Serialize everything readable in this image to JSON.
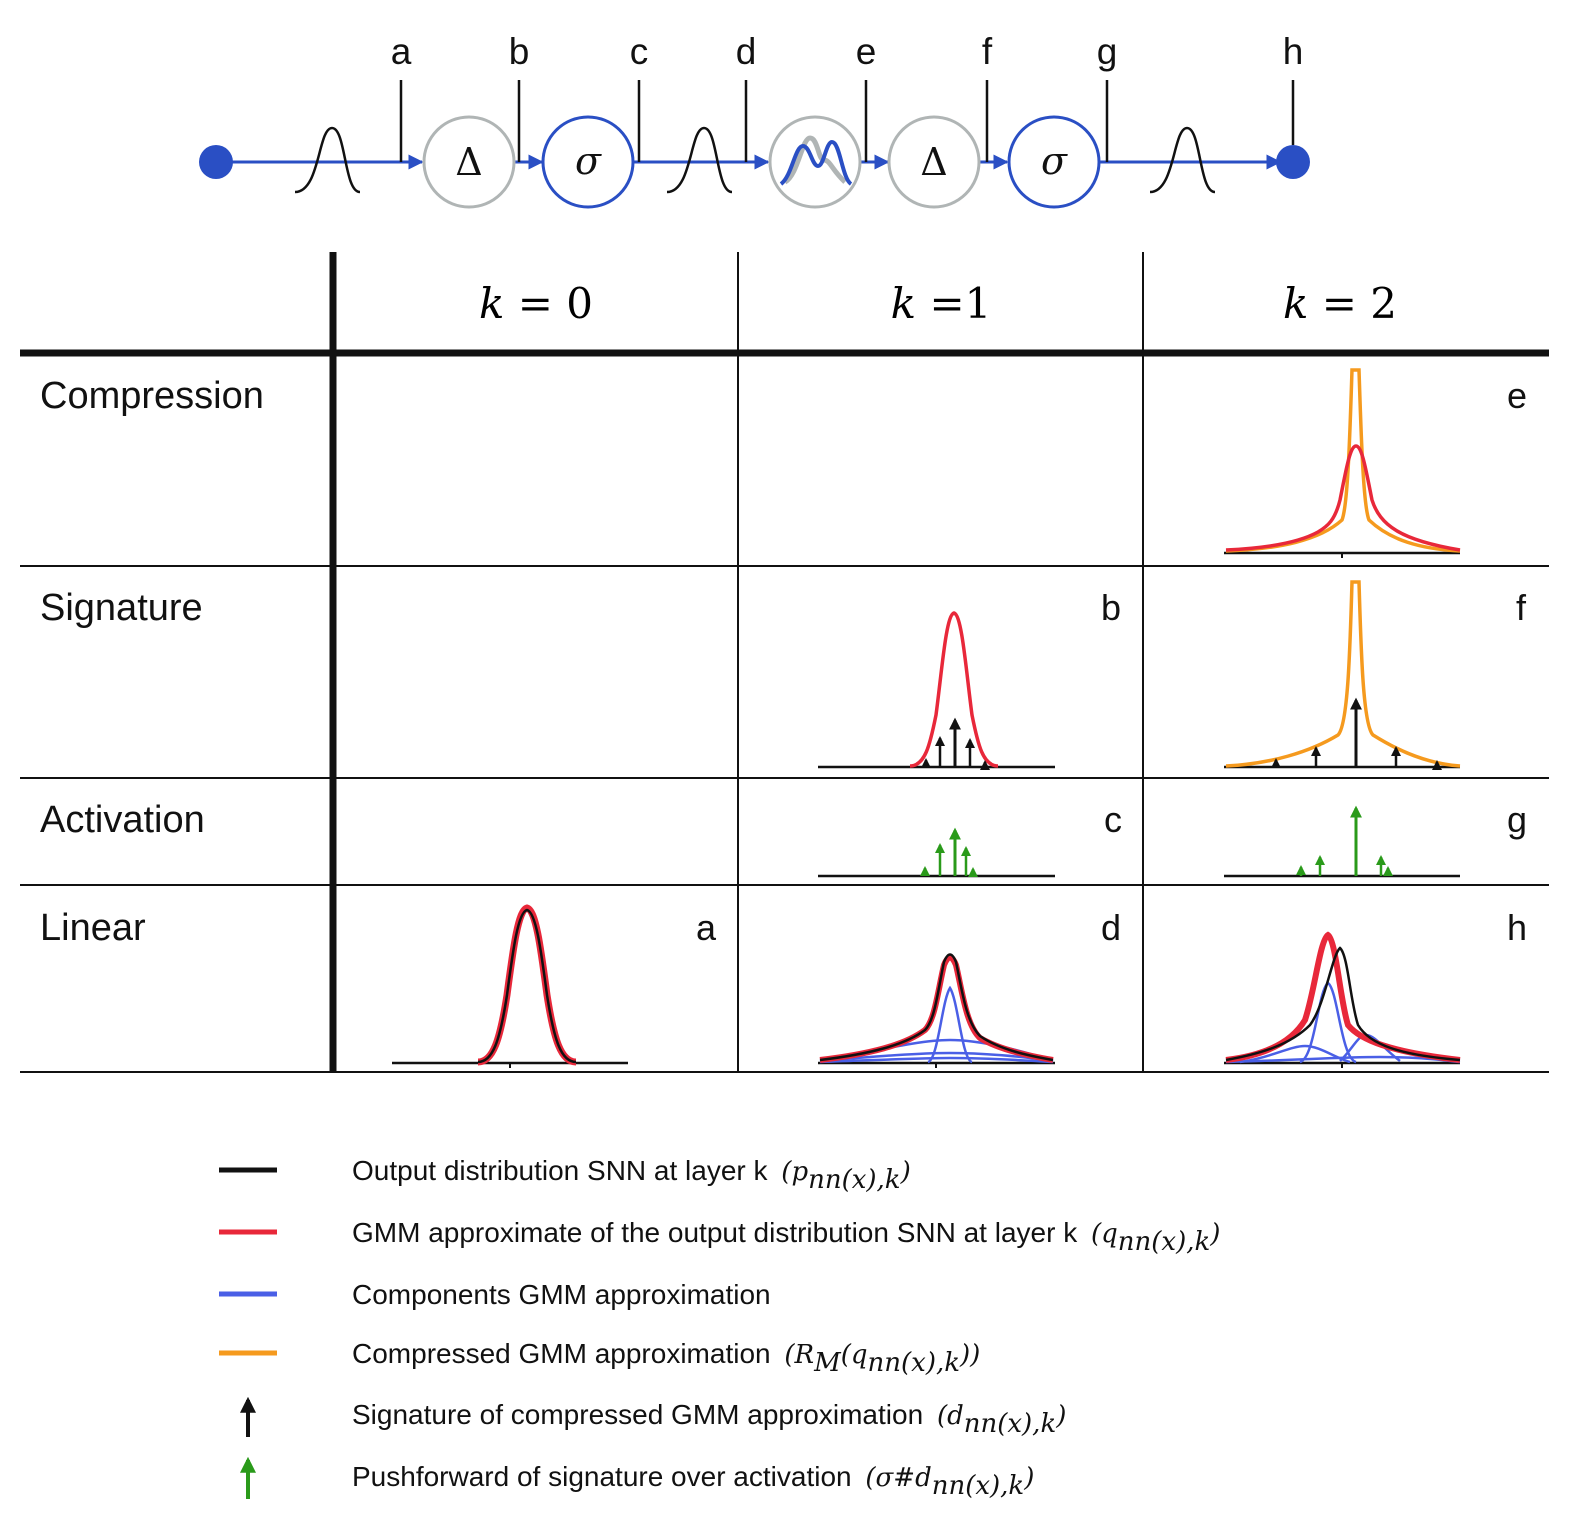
{
  "pipeline": {
    "tap_labels": [
      "a",
      "b",
      "c",
      "d",
      "e",
      "f",
      "g",
      "h"
    ],
    "compress_symbol": "Δ",
    "activation_symbol": "σ"
  },
  "table": {
    "columns": [
      {
        "var": "k",
        "eq": " = 0"
      },
      {
        "var": "k",
        "eq": " =1"
      },
      {
        "var": "k",
        "eq": " = 2"
      }
    ],
    "rows": [
      "Compression",
      "Signature",
      "Activation",
      "Linear"
    ],
    "panel_labels": {
      "compression_k2": "e",
      "signature_k1": "b",
      "signature_k2": "f",
      "activation_k1": "c",
      "activation_k2": "g",
      "linear_k0": "a",
      "linear_k1": "d",
      "linear_k2": "h"
    }
  },
  "legend": {
    "items": [
      {
        "text": "Output distribution SNN at layer k",
        "math": "(p",
        "sub": "nn(x),k",
        "close": ")",
        "color": "#111111",
        "kind": "line"
      },
      {
        "text": "GMM approximate of the output distribution SNN at layer k",
        "math": "(q",
        "sub": "nn(x),k",
        "close": ")",
        "color": "#e8283a",
        "kind": "line"
      },
      {
        "text": "Components GMM approximation",
        "math": "",
        "sub": "",
        "close": "",
        "color": "#4a5fe6",
        "kind": "line"
      },
      {
        "text": "Compressed GMM approximation",
        "math": "(R",
        "sub": "M",
        "close": "(q",
        "sub2": "nn(x),k",
        "close2": "))",
        "color": "#f59a1e",
        "kind": "line"
      },
      {
        "text": "Signature of compressed GMM approximation",
        "math": "(d",
        "sub": "nn(x),k",
        "close": ")",
        "color": "#111111",
        "kind": "arrow"
      },
      {
        "text": "Pushforward of signature over activation",
        "math": "(σ#d",
        "sub": "nn(x),k",
        "close": ")",
        "color": "#2a9a1a",
        "kind": "arrow"
      }
    ]
  },
  "colors": {
    "black": "#111111",
    "red": "#e8283a",
    "blue": "#4a5fe6",
    "orange": "#f59a1e",
    "green": "#2a9a1a",
    "pipeline_blue": "#2a4fc4",
    "gray": "#b0b5b5"
  }
}
